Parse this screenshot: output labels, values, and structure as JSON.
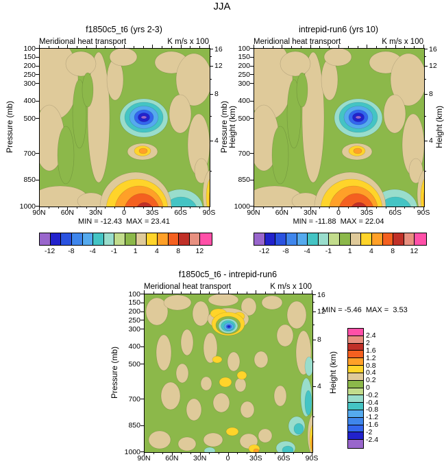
{
  "title": "JJA",
  "palette": {
    "green": "#8CB84A",
    "palegreen": "#C2DC8C",
    "tan": "#DFCA9A",
    "yellow": "#FFD42A",
    "orange": "#FFA028",
    "redorange": "#F46020",
    "darkred": "#C03028",
    "salmon": "#E89080",
    "pink": "#FF50A8",
    "paleturq": "#99DDCC",
    "cyan": "#44C4C4",
    "lightblue": "#55AAEE",
    "skyblue": "#3F86EC",
    "blue": "#3366EE",
    "medblue": "#2A52E0",
    "navy": "#2222CC",
    "violet": "#9966CC"
  },
  "axes": {
    "pressure_ticks": [
      "100",
      "150",
      "200",
      "250",
      "300",
      "400",
      "500",
      "700",
      "850",
      "1000"
    ],
    "height_ticks": [
      "16",
      "12",
      "8",
      "4"
    ],
    "lat_ticks": [
      "90N",
      "60N",
      "30N",
      "0",
      "30S",
      "60S",
      "90S"
    ]
  },
  "colorbar_top": {
    "colors": [
      "#9966CC",
      "#2222CC",
      "#2A52E0",
      "#3F86EC",
      "#55AAEE",
      "#44C4C4",
      "#99DDCC",
      "#C2DC8C",
      "#8CB84A",
      "#DFCA9A",
      "#FFD42A",
      "#FFA028",
      "#F46020",
      "#C03028",
      "#E89080",
      "#FF50A8"
    ],
    "labels": [
      "-12",
      "-8",
      "-4",
      "-1",
      "1",
      "4",
      "8",
      "12"
    ]
  },
  "colorbar_diff": {
    "colors": [
      "#FF50A8",
      "#E89080",
      "#C03028",
      "#F46020",
      "#FFA028",
      "#FFD42A",
      "#DFCA9A",
      "#8CB84A",
      "#C2DC8C",
      "#99DDCC",
      "#44C4C4",
      "#55AAEE",
      "#3F86EC",
      "#3366EE",
      "#2222CC",
      "#9966CC"
    ],
    "labels": [
      "2.4",
      "2",
      "1.6",
      "1.2",
      "0.8",
      "0.4",
      "0.2",
      "0",
      "-0.2",
      "-0.4",
      "-0.8",
      "-1.2",
      "-1.6",
      "-2",
      "-2.4"
    ]
  },
  "panels": {
    "top_left": {
      "title": "f1850c5_t6 (yrs 2-3)",
      "subtitle_left": "Meridional heat transport",
      "subtitle_right": "K m/s x 100",
      "ylabel_left": "Pressure (mb)",
      "ylabel_right": "Height (km)",
      "stats": "MIN = -12.43  MAX = 23.41"
    },
    "top_right": {
      "title": "intrepid-run6 (yrs 10)",
      "subtitle_left": "Meridional heat transport",
      "subtitle_right": "K m/s x 100",
      "ylabel_left": "Pressure (mb)",
      "ylabel_right": "Height (km)",
      "stats": "MIN = -11.88  MAX = 22.04"
    },
    "diff": {
      "title": "f1850c5_t6 - intrepid-run6",
      "subtitle_left": "Meridional heat transport",
      "subtitle_right": "K m/s x 100",
      "ylabel_left": "Pressure (mb)",
      "ylabel_right": "Height (km)",
      "stats": "MIN = -5.46  MAX =  3.53"
    }
  },
  "chart_data": [
    {
      "type": "heatmap",
      "panel": "top_left",
      "title": "f1850c5_t6 (yrs 2-3)",
      "variable": "Meridional heat transport",
      "units": "K m/s x 100",
      "season": "JJA",
      "x_axis": {
        "label": "latitude",
        "ticks": [
          "90N",
          "60N",
          "30N",
          "0",
          "30S",
          "60S",
          "90S"
        ]
      },
      "y_axis_left": {
        "label": "Pressure (mb)",
        "ticks": [
          100,
          150,
          200,
          250,
          300,
          400,
          500,
          700,
          850,
          1000
        ],
        "scale": "linear-in-pressure"
      },
      "y_axis_right": {
        "label": "Height (km)",
        "ticks": [
          16,
          12,
          8,
          4
        ]
      },
      "min": -12.43,
      "max": 23.41,
      "contour_levels": [
        -12,
        -10,
        -8,
        -6,
        -4,
        -2,
        -1,
        0,
        1,
        2,
        4,
        6,
        8,
        10,
        12
      ],
      "labeled_levels": [
        -12,
        -8,
        -4,
        -1,
        1,
        4,
        8,
        12
      ],
      "legend_position": "bottom-horizontal",
      "features": [
        "blue negative core (about -12) centered near 200 mb just south of the equator",
        "red/orange positive maximum (greater than 12) near the surface between 0 and 30S",
        "cyan negative pocket near the surface between 30S and 60S",
        "warm positive stripe at the 90S edge near the surface",
        "tan weakly-positive bands over northern mid and high latitudes"
      ]
    },
    {
      "type": "heatmap",
      "panel": "top_right",
      "title": "intrepid-run6 (yrs 10)",
      "variable": "Meridional heat transport",
      "units": "K m/s x 100",
      "season": "JJA",
      "x_axis": {
        "label": "latitude",
        "ticks": [
          "90N",
          "60N",
          "30N",
          "0",
          "30S",
          "60S",
          "90S"
        ]
      },
      "y_axis_left": {
        "label": "Pressure (mb)",
        "ticks": [
          100,
          150,
          200,
          250,
          300,
          400,
          500,
          700,
          850,
          1000
        ],
        "scale": "linear-in-pressure"
      },
      "y_axis_right": {
        "label": "Height (km)",
        "ticks": [
          16,
          12,
          8,
          4
        ]
      },
      "min": -11.88,
      "max": 22.04,
      "contour_levels": [
        -12,
        -10,
        -8,
        -6,
        -4,
        -2,
        -1,
        0,
        1,
        2,
        4,
        6,
        8,
        10,
        12
      ],
      "labeled_levels": [
        -12,
        -8,
        -4,
        -1,
        1,
        4,
        8,
        12
      ],
      "legend_position": "bottom-horizontal",
      "features": [
        "blue negative core near 200 mb just south of the equator",
        "red/orange positive maximum near the surface between 0 and 30S",
        "cyan negative pocket near the surface between 30S and 60S",
        "warm positive stripe at the 90S edge near the surface"
      ]
    },
    {
      "type": "heatmap",
      "panel": "difference",
      "title": "f1850c5_t6 - intrepid-run6",
      "variable": "Meridional heat transport",
      "units": "K m/s x 100",
      "season": "JJA",
      "x_axis": {
        "label": "latitude",
        "ticks": [
          "90N",
          "60N",
          "30N",
          "0",
          "30S",
          "60S",
          "90S"
        ]
      },
      "y_axis_left": {
        "label": "Pressure (mb)",
        "ticks": [
          100,
          150,
          200,
          250,
          300,
          400,
          500,
          700,
          850,
          1000
        ],
        "scale": "linear-in-pressure"
      },
      "y_axis_right": {
        "label": "Height (km)",
        "ticks": [
          16,
          12,
          8,
          4
        ]
      },
      "min": -5.46,
      "max": 3.53,
      "contour_levels": [
        -2.4,
        -2,
        -1.6,
        -1.2,
        -0.8,
        -0.4,
        -0.2,
        0,
        0.2,
        0.4,
        0.8,
        1.2,
        1.6,
        2,
        2.4
      ],
      "legend_position": "right-vertical",
      "features": [
        "small blue negative center near 250 mb just north of the equator ringed by yellow",
        "scattered tan and yellow weak positive patches throughout the domain",
        "teal negative streaks near 60S at low levels",
        "warm positive stripe at the 90S edge near the surface"
      ]
    }
  ]
}
